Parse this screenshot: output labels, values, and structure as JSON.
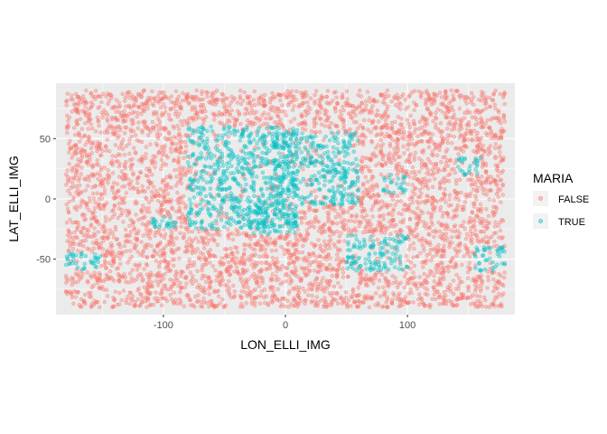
{
  "chart_data": {
    "type": "scatter",
    "xlabel": "LON_ELLI_IMG",
    "ylabel": "LAT_ELLI_IMG",
    "xlim": [
      -188,
      188
    ],
    "ylim": [
      -96,
      96
    ],
    "x_ticks": [
      -100,
      0,
      100
    ],
    "y_ticks": [
      -50,
      0,
      50
    ],
    "x_minor_ticks": [
      -150,
      -50,
      50,
      150
    ],
    "y_minor_ticks": [
      -75,
      -25,
      25,
      75
    ],
    "x_data_range": [
      -180,
      180
    ],
    "y_data_range": [
      -90,
      90
    ],
    "grid": true,
    "legend_position": "right",
    "legend": {
      "title": "MARIA",
      "entries": [
        {
          "label": "FALSE",
          "color": "#F8766D"
        },
        {
          "label": "TRUE",
          "color": "#00BFC4"
        }
      ]
    },
    "series": [
      {
        "name": "FALSE",
        "color": "#F8766D",
        "region_description": "dense uniform coverage of the whole lon/lat range except mare areas",
        "sample_points": [
          [
            -170,
            80
          ],
          [
            -120,
            40
          ],
          [
            -60,
            -20
          ],
          [
            10,
            -60
          ],
          [
            120,
            10
          ],
          [
            170,
            -80
          ]
        ]
      },
      {
        "name": "TRUE",
        "color": "#00BFC4",
        "region_description": "clusters in the near-side maria (approx. lon -80..60, lat -30..65) and scattered patches elsewhere",
        "clusters": [
          {
            "lon": [
              -80,
              10
            ],
            "lat": [
              -25,
              60
            ]
          },
          {
            "lon": [
              -10,
              60
            ],
            "lat": [
              -5,
              55
            ]
          },
          {
            "lon": [
              -30,
              10
            ],
            "lat": [
              -30,
              -5
            ]
          },
          {
            "lon": [
              50,
              100
            ],
            "lat": [
              -60,
              -30
            ]
          },
          {
            "lon": [
              140,
              160
            ],
            "lat": [
              20,
              35
            ]
          },
          {
            "lon": [
              155,
              180
            ],
            "lat": [
              -60,
              -40
            ]
          },
          {
            "lon": [
              -180,
              -150
            ],
            "lat": [
              -60,
              -45
            ]
          },
          {
            "lon": [
              -110,
              -90
            ],
            "lat": [
              -25,
              -15
            ]
          },
          {
            "lon": [
              80,
              100
            ],
            "lat": [
              5,
              20
            ]
          }
        ]
      }
    ]
  }
}
